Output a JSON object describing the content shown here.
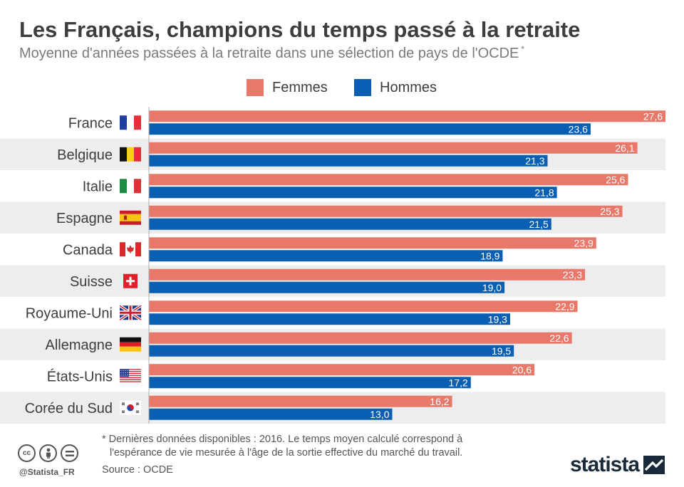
{
  "header": {
    "title": "Les Français, champions du temps passé à la retraite",
    "subtitle": "Moyenne d'années passées à la retraite dans une sélection de pays de l'OCDE",
    "subtitle_mark": "*"
  },
  "colors": {
    "femmes": "#e8786a",
    "hommes": "#0b5fb3",
    "row_band": "#ededed",
    "axis": "#b0b0b0"
  },
  "chart_data": {
    "type": "bar",
    "orientation": "horizontal",
    "categories": [
      "France",
      "Belgique",
      "Italie",
      "Espagne",
      "Canada",
      "Suisse",
      "Royaume-Uni",
      "Allemagne",
      "États-Unis",
      "Corée du Sud"
    ],
    "flags": [
      "france-flag-icon",
      "belgium-flag-icon",
      "italy-flag-icon",
      "spain-flag-icon",
      "canada-flag-icon",
      "switzerland-flag-icon",
      "uk-flag-icon",
      "germany-flag-icon",
      "usa-flag-icon",
      "south-korea-flag-icon"
    ],
    "series": [
      {
        "name": "Femmes",
        "values": [
          27.6,
          26.1,
          25.6,
          25.3,
          23.9,
          23.3,
          22.9,
          22.6,
          20.6,
          16.2
        ],
        "labels": [
          "27,6",
          "26,1",
          "25,6",
          "25,3",
          "23,9",
          "23,3",
          "22,9",
          "22,6",
          "20,6",
          "16,2"
        ]
      },
      {
        "name": "Hommes",
        "values": [
          23.6,
          21.3,
          21.8,
          21.5,
          18.9,
          19.0,
          19.3,
          19.5,
          17.2,
          13.0
        ],
        "labels": [
          "23,6",
          "21,3",
          "21,8",
          "21,5",
          "18,9",
          "19,0",
          "19,3",
          "19,5",
          "17,2",
          "13,0"
        ]
      }
    ],
    "xlim": [
      0,
      27.6
    ],
    "legend": "top-center",
    "grid": false,
    "alternating_row_bands": true
  },
  "footer": {
    "note_line1": "* Dernières données disponibles : 2016. Le temps moyen calculé correspond à",
    "note_line2": "l'espérance de vie mesurée à l'âge de la sortie effective du marché du travail.",
    "source": "Source : OCDE",
    "handle": "@Statista_FR",
    "brand": "statista",
    "license_icons": [
      "cc-icon",
      "by-icon",
      "nd-icon"
    ]
  }
}
